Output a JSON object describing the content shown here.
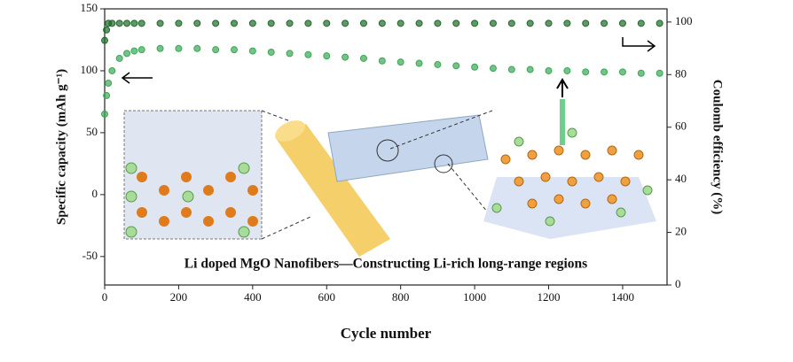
{
  "chart_data": {
    "type": "line",
    "x_label": "Cycle number",
    "y_label": "Specific capacity (mAh g⁻¹)",
    "y2_label": "Coulomb efficiency (%)",
    "annotation": "Li doped MgO Nanofibers—Constructing Li-rich long-range regions",
    "x": [
      0,
      5,
      10,
      20,
      40,
      60,
      80,
      100,
      150,
      200,
      250,
      300,
      350,
      400,
      450,
      500,
      550,
      600,
      650,
      700,
      750,
      800,
      850,
      900,
      950,
      1000,
      1050,
      1100,
      1150,
      1200,
      1250,
      1300,
      1350,
      1400,
      1450,
      1500
    ],
    "series": [
      {
        "name": "Specific capacity",
        "color": "#3aa856",
        "values": [
          65,
          80,
          90,
          100,
          110,
          114,
          116,
          117,
          118,
          118,
          118,
          117,
          117,
          116,
          115,
          114,
          113,
          112,
          111,
          110,
          108,
          107,
          106,
          105,
          104,
          103,
          102,
          101,
          101,
          100,
          100,
          99,
          99,
          99,
          98,
          98
        ]
      },
      {
        "name": "Coulomb efficiency",
        "color": "#1e6b2a",
        "axis": "y2",
        "values": [
          93,
          97,
          99.5,
          99.5,
          99.5,
          99.5,
          99.5,
          99.5,
          99.5,
          99.5,
          99.5,
          99.5,
          99.5,
          99.5,
          99.5,
          99.5,
          99.5,
          99.5,
          99.5,
          99.5,
          99.5,
          99.5,
          99.5,
          99.5,
          99.5,
          99.5,
          99.5,
          99.5,
          99.5,
          99.5,
          99.5,
          99.5,
          99.5,
          99.5,
          99.5,
          99.5
        ]
      }
    ],
    "xlim": [
      0,
      1520
    ],
    "xticks": [
      0,
      200,
      400,
      600,
      800,
      1000,
      1200,
      1400
    ],
    "ylim": [
      -73,
      150
    ],
    "yticks": [
      -50,
      0,
      50,
      100,
      150
    ],
    "y2lim": [
      0,
      105
    ],
    "y2ticks": [
      0,
      20,
      40,
      60,
      80,
      100
    ]
  }
}
